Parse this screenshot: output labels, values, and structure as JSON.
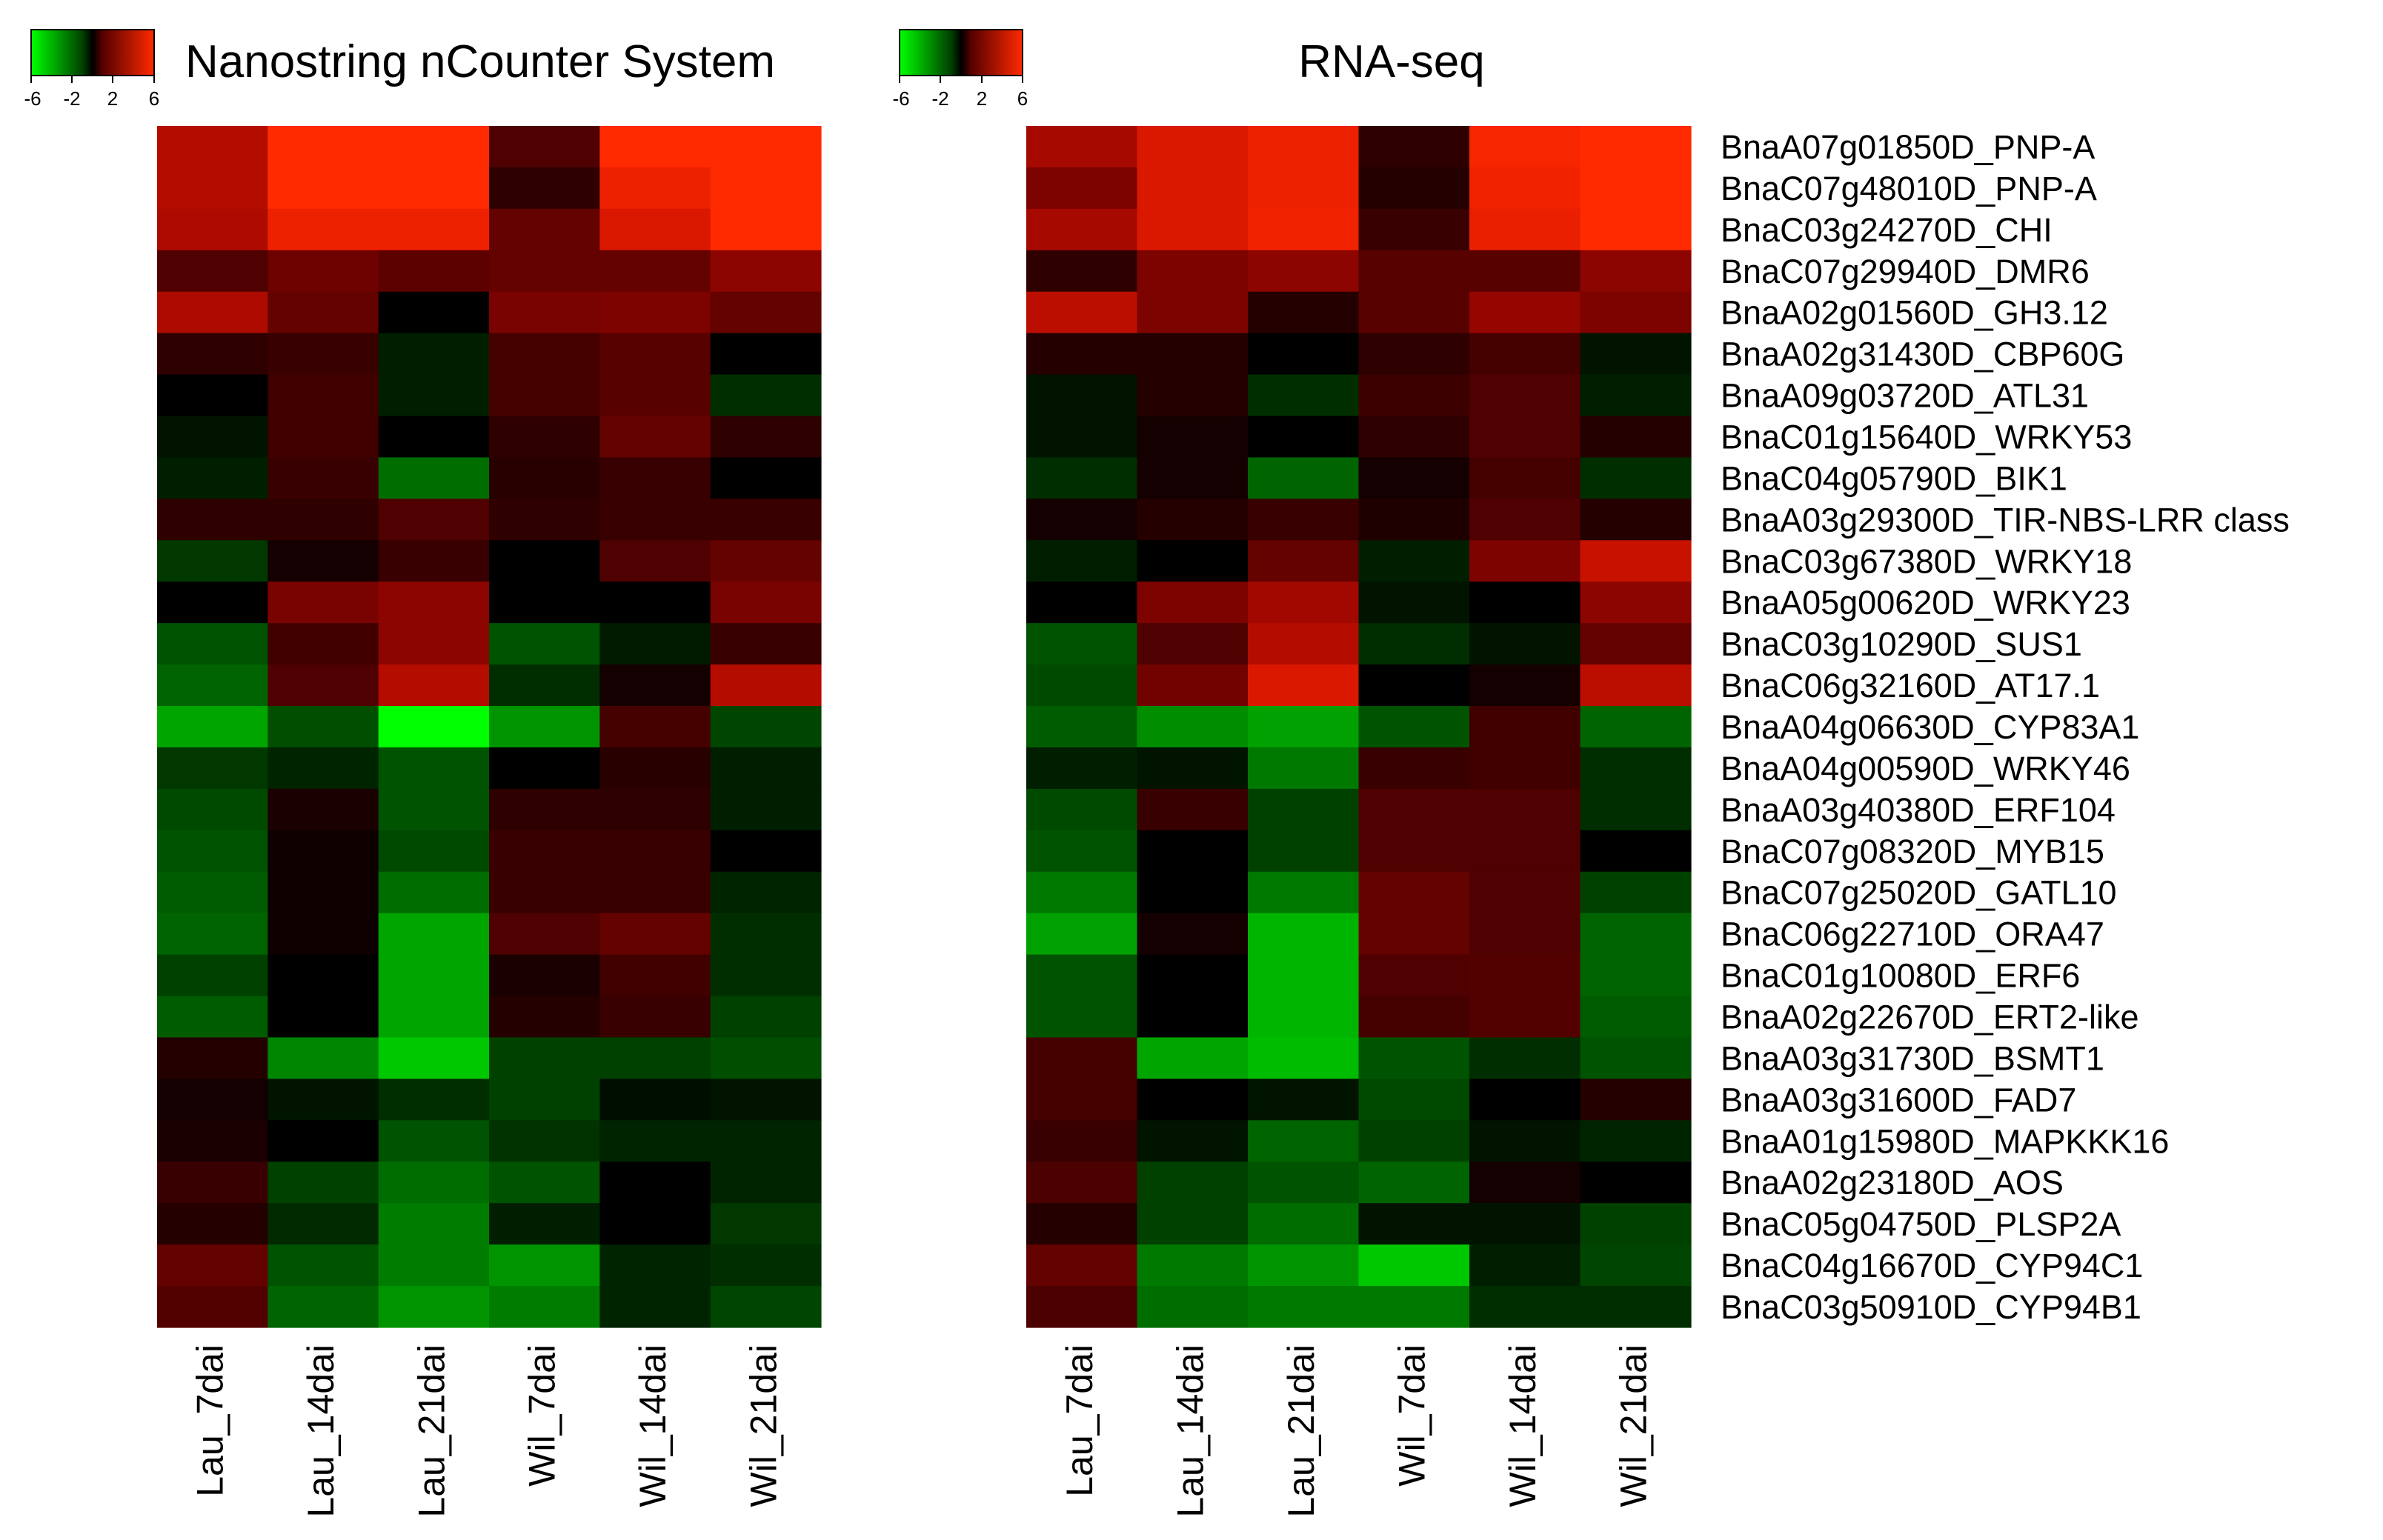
{
  "chart_data": [
    {
      "type": "heatmap",
      "title": "Nanostring nCounter System",
      "colorscale": {
        "min": -6,
        "max": 6,
        "low_color": "#00ff00",
        "mid_color": "#000000",
        "high_color": "#ff2a00",
        "ticks": [
          "-6",
          "-2",
          "2",
          "6"
        ]
      },
      "columns": [
        "Lau_7dai",
        "Lau_14dai",
        "Lau_21dai",
        "Wil_7dai",
        "Wil_14dai",
        "Wil_21dai"
      ],
      "rows": [
        "BnaA07g01850D_PNP-A",
        "BnaC07g48010D_PNP-A",
        "BnaC03g24270D_CHI",
        "BnaC07g29940D_DMR6",
        "BnaA02g01560D_GH3.12",
        "BnaA02g31430D_CBP60G",
        "BnaA09g03720D_ATL31",
        "BnaC01g15640D_WRKY53",
        "BnaC04g05790D_BIK1",
        "BnaA03g29300D_TIR-NBS-LRR class",
        "BnaC03g67380D_WRKY18",
        "BnaA05g00620D_WRKY23",
        "BnaC03g10290D_SUS1",
        "BnaC06g32160D_AT17.1",
        "BnaA04g06630D_CYP83A1",
        "BnaA04g00590D_WRKY46",
        "BnaA03g40380D_ERF104",
        "BnaC07g08320D_MYB15",
        "BnaC07g25020D_GATL10",
        "BnaC06g22710D_ORA47",
        "BnaC01g10080D_ERF6",
        "BnaA02g22670D_ERT2-like",
        "BnaA03g31730D_BSMT1",
        "BnaA03g31600D_FAD7",
        "BnaA01g15980D_MAPKKK16",
        "BnaA02g23180D_AOS",
        "BnaC05g04750D_PLSP2A",
        "BnaC04g16670D_CYP94C1",
        "BnaC03g50910D_CYP94B1"
      ],
      "values": [
        [
          4.0,
          6.0,
          6.0,
          1.5,
          6.0,
          6.0
        ],
        [
          4.0,
          6.0,
          6.0,
          0.8,
          5.5,
          6.0
        ],
        [
          3.8,
          5.5,
          5.5,
          2.0,
          5.0,
          6.0
        ],
        [
          1.5,
          2.2,
          1.8,
          2.0,
          2.0,
          3.0
        ],
        [
          3.8,
          2.0,
          0.0,
          2.5,
          2.6,
          2.0
        ],
        [
          0.8,
          1.0,
          -0.5,
          1.3,
          1.7,
          0.0
        ],
        [
          0.0,
          1.2,
          -0.5,
          1.3,
          1.7,
          -0.8
        ],
        [
          -0.3,
          1.2,
          0.0,
          0.8,
          2.0,
          0.8
        ],
        [
          -0.5,
          1.0,
          -2.2,
          0.7,
          1.0,
          0.0
        ],
        [
          0.8,
          0.8,
          1.5,
          0.8,
          1.0,
          1.0
        ],
        [
          -1.0,
          0.3,
          1.0,
          0.0,
          1.5,
          2.0
        ],
        [
          0.0,
          2.5,
          3.0,
          0.0,
          0.0,
          2.5
        ],
        [
          -1.6,
          1.2,
          3.0,
          -1.6,
          -0.4,
          1.0
        ],
        [
          -2.0,
          1.5,
          4.0,
          -0.8,
          0.3,
          4.0
        ],
        [
          -3.6,
          -1.5,
          -6.0,
          -3.2,
          1.3,
          -1.3
        ],
        [
          -1.0,
          -0.6,
          -1.6,
          0.0,
          0.7,
          -0.5
        ],
        [
          -1.4,
          0.4,
          -1.6,
          0.8,
          0.8,
          -0.5
        ],
        [
          -1.6,
          0.2,
          -1.4,
          1.0,
          1.0,
          0.0
        ],
        [
          -1.8,
          0.2,
          -2.2,
          1.0,
          1.0,
          -0.6
        ],
        [
          -2.0,
          0.2,
          -3.6,
          1.5,
          2.0,
          -0.8
        ],
        [
          -1.2,
          0.0,
          -3.6,
          0.4,
          1.2,
          -0.8
        ],
        [
          -1.8,
          0.0,
          -3.6,
          0.6,
          1.0,
          -1.2
        ],
        [
          0.6,
          -2.8,
          -4.5,
          -1.2,
          -1.2,
          -1.5
        ],
        [
          0.3,
          -0.3,
          -0.8,
          -1.2,
          -0.2,
          -0.3
        ],
        [
          0.4,
          0.0,
          -1.6,
          -0.9,
          -0.6,
          -0.6
        ],
        [
          1.0,
          -1.2,
          -2.2,
          -1.6,
          0.0,
          -0.6
        ],
        [
          0.6,
          -0.7,
          -2.6,
          -0.5,
          0.0,
          -1.0
        ],
        [
          2.0,
          -1.6,
          -2.6,
          -3.2,
          -0.6,
          -0.8
        ],
        [
          1.6,
          -2.0,
          -3.2,
          -2.6,
          -0.6,
          -1.3
        ]
      ]
    },
    {
      "type": "heatmap",
      "title": "RNA-seq",
      "colorscale": {
        "min": -6,
        "max": 6,
        "low_color": "#00ff00",
        "mid_color": "#000000",
        "high_color": "#ff2a00",
        "ticks": [
          "-6",
          "-2",
          "2",
          "6"
        ]
      },
      "columns": [
        "Lau_7dai",
        "Lau_14dai",
        "Lau_21dai",
        "Wil_7dai",
        "Wil_14dai",
        "Wil_21dai"
      ],
      "rows": [
        "BnaA07g01850D_PNP-A",
        "BnaC07g48010D_PNP-A",
        "BnaC03g24270D_CHI",
        "BnaC07g29940D_DMR6",
        "BnaA02g01560D_GH3.12",
        "BnaA02g31430D_CBP60G",
        "BnaA09g03720D_ATL31",
        "BnaC01g15640D_WRKY53",
        "BnaC04g05790D_BIK1",
        "BnaA03g29300D_TIR-NBS-LRR class",
        "BnaC03g67380D_WRKY18",
        "BnaA05g00620D_WRKY23",
        "BnaC03g10290D_SUS1",
        "BnaC06g32160D_AT17.1",
        "BnaA04g06630D_CYP83A1",
        "BnaA04g00590D_WRKY46",
        "BnaA03g40380D_ERF104",
        "BnaC07g08320D_MYB15",
        "BnaC07g25020D_GATL10",
        "BnaC06g22710D_ORA47",
        "BnaC01g10080D_ERF6",
        "BnaA02g22670D_ERT2-like",
        "BnaA03g31730D_BSMT1",
        "BnaA03g31600D_FAD7",
        "BnaA01g15980D_MAPKKK16",
        "BnaA02g23180D_AOS",
        "BnaC05g04750D_PLSP2A",
        "BnaC04g16670D_CYP94C1",
        "BnaC03g50910D_CYP94B1"
      ],
      "values": [
        [
          3.6,
          5.0,
          5.5,
          0.8,
          5.8,
          6.0
        ],
        [
          2.6,
          5.0,
          5.5,
          0.6,
          5.6,
          6.0
        ],
        [
          3.6,
          5.0,
          5.6,
          1.0,
          5.4,
          6.0
        ],
        [
          0.8,
          2.6,
          3.0,
          1.7,
          1.7,
          3.0
        ],
        [
          4.2,
          2.6,
          0.6,
          1.7,
          3.2,
          2.6
        ],
        [
          0.6,
          0.6,
          0.0,
          0.8,
          1.3,
          -0.3
        ],
        [
          -0.3,
          0.6,
          -0.8,
          1.1,
          1.5,
          -0.5
        ],
        [
          -0.3,
          0.3,
          0.0,
          0.8,
          1.5,
          0.6
        ],
        [
          -0.8,
          0.3,
          -2.0,
          0.3,
          1.3,
          -0.8
        ],
        [
          0.3,
          0.6,
          1.0,
          0.5,
          1.5,
          0.6
        ],
        [
          -0.5,
          0.0,
          2.0,
          -0.5,
          2.6,
          4.5
        ],
        [
          0.0,
          2.6,
          3.5,
          -0.3,
          0.0,
          3.0
        ],
        [
          -1.6,
          1.5,
          4.0,
          -0.8,
          -0.3,
          2.0
        ],
        [
          -1.4,
          2.3,
          5.0,
          0.0,
          0.3,
          4.2
        ],
        [
          -1.8,
          -3.0,
          -3.5,
          -1.6,
          1.2,
          -2.0
        ],
        [
          -0.5,
          -0.3,
          -2.5,
          1.0,
          1.2,
          -0.8
        ],
        [
          -1.4,
          1.0,
          -1.2,
          1.5,
          1.5,
          -0.8
        ],
        [
          -1.6,
          0.0,
          -1.2,
          1.5,
          1.5,
          0.0
        ],
        [
          -2.5,
          0.0,
          -2.5,
          2.0,
          1.5,
          -1.2
        ],
        [
          -3.5,
          0.3,
          -4.0,
          2.0,
          1.5,
          -2.0
        ],
        [
          -1.6,
          0.0,
          -4.0,
          1.5,
          1.6,
          -2.0
        ],
        [
          -1.6,
          0.0,
          -4.0,
          1.3,
          1.6,
          -1.8
        ],
        [
          1.3,
          -3.6,
          -4.2,
          -1.6,
          -0.8,
          -1.6
        ],
        [
          1.3,
          0.0,
          -0.3,
          -1.4,
          0.0,
          0.6
        ],
        [
          1.0,
          -0.3,
          -2.0,
          -1.2,
          -0.3,
          -0.6
        ],
        [
          1.4,
          -1.2,
          -1.6,
          -2.0,
          0.3,
          0.0
        ],
        [
          0.6,
          -1.2,
          -2.2,
          -0.3,
          -0.3,
          -1.2
        ],
        [
          2.0,
          -2.5,
          -3.2,
          -4.5,
          -0.5,
          -1.3
        ],
        [
          1.4,
          -2.2,
          -2.5,
          -2.5,
          -0.8,
          -0.8
        ]
      ]
    }
  ]
}
